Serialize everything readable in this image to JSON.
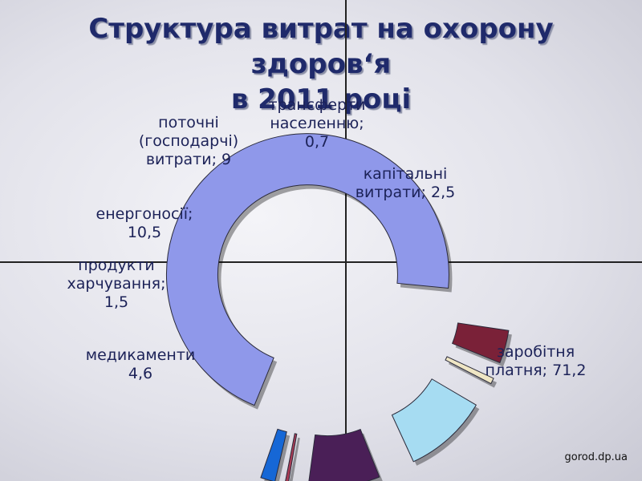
{
  "chart_data": {
    "type": "pie",
    "title_lines": [
      "Структура витрат на охорону здоров‘я",
      "в 2011 році"
    ],
    "unit": "%",
    "slices": [
      {
        "label_lines": [
          "заробітня",
          "платня;"
        ],
        "value": 71.2,
        "value_text": "71,2",
        "color": "#8f98ea",
        "inline": true
      },
      {
        "label_lines": [
          "медикаменти"
        ],
        "value": 4.6,
        "value_text": "4,6",
        "color": "#7a2138",
        "inline": false
      },
      {
        "label_lines": [
          "продукти",
          "харчування;"
        ],
        "value": 1.5,
        "value_text": "1,5",
        "color": "#efe6c4",
        "inline": false
      },
      {
        "label_lines": [
          "енергоносії;"
        ],
        "value": 10.5,
        "value_text": "10,5",
        "color": "#a6dcf2",
        "inline": false
      },
      {
        "label_lines": [
          "поточні",
          "(господарчі)",
          "витрати;"
        ],
        "value": 9,
        "value_text": "9",
        "color": "#4a1f57",
        "inline": true
      },
      {
        "label_lines": [
          "трансферти",
          "населенню;"
        ],
        "value": 0.7,
        "value_text": "0,7",
        "color": "#a83c55",
        "inline": false
      },
      {
        "label_lines": [
          "капітальні",
          "витрати;"
        ],
        "value": 2.5,
        "value_text": "2,5",
        "color": "#1667d6",
        "inline": true
      }
    ]
  },
  "watermark": "gorod.dp.ua"
}
